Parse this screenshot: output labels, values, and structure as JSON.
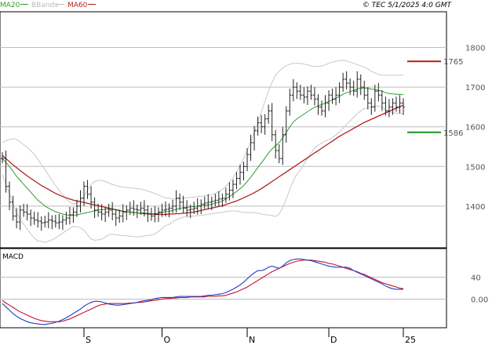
{
  "header": {
    "legend": [
      {
        "label": "MA20",
        "color": "#2e9e2e"
      },
      {
        "label": "BBands",
        "color": "#bbbbbb"
      },
      {
        "label": "MA60",
        "color": "#b21f1f"
      }
    ],
    "timestamp": "© TEC 5/1/2025 4:0 GMT"
  },
  "chart_data": [
    {
      "type": "ohlc",
      "yticks": [
        1400,
        1500,
        1600,
        1700,
        1800
      ],
      "ytick_labels": [
        "1400",
        "1500",
        "1600",
        "1700",
        "1800"
      ],
      "ylim": [
        1295,
        1890
      ],
      "grid": true,
      "x_labels": [
        "S",
        "O",
        "N",
        "D",
        "25"
      ],
      "x_label_index": [
        23,
        45,
        69,
        92,
        113
      ],
      "n_bars": 114,
      "close": [
        1520,
        1450,
        1410,
        1375,
        1360,
        1390,
        1385,
        1380,
        1370,
        1365,
        1362,
        1358,
        1360,
        1365,
        1362,
        1358,
        1360,
        1365,
        1370,
        1378,
        1385,
        1400,
        1420,
        1450,
        1430,
        1410,
        1390,
        1385,
        1380,
        1385,
        1390,
        1380,
        1370,
        1375,
        1385,
        1390,
        1395,
        1392,
        1390,
        1395,
        1390,
        1380,
        1375,
        1380,
        1385,
        1390,
        1392,
        1395,
        1400,
        1420,
        1410,
        1395,
        1390,
        1392,
        1395,
        1400,
        1405,
        1408,
        1410,
        1412,
        1415,
        1418,
        1420,
        1430,
        1440,
        1455,
        1470,
        1485,
        1500,
        1530,
        1560,
        1590,
        1610,
        1600,
        1620,
        1640,
        1580,
        1540,
        1520,
        1580,
        1640,
        1680,
        1700,
        1690,
        1680,
        1675,
        1690,
        1680,
        1670,
        1650,
        1640,
        1660,
        1680,
        1670,
        1680,
        1700,
        1720,
        1710,
        1700,
        1690,
        1720,
        1700,
        1680,
        1660,
        1650,
        1690,
        1680,
        1660,
        1640,
        1650,
        1660,
        1650,
        1660,
        1650
      ],
      "sma20": [
        1520,
        1510,
        1500,
        1488,
        1475,
        1465,
        1455,
        1445,
        1435,
        1425,
        1415,
        1408,
        1400,
        1395,
        1390,
        1386,
        1383,
        1380,
        1378,
        1377,
        1377,
        1378,
        1380,
        1382,
        1384,
        1386,
        1388,
        1390,
        1391,
        1392,
        1393,
        1392,
        1390,
        1388,
        1387,
        1386,
        1385,
        1384,
        1383,
        1383,
        1383,
        1382,
        1381,
        1381,
        1382,
        1384,
        1386,
        1387,
        1389,
        1392,
        1394,
        1396,
        1397,
        1398,
        1399,
        1400,
        1401,
        1402,
        1403,
        1405,
        1407,
        1410,
        1413,
        1418,
        1424,
        1430,
        1437,
        1444,
        1452,
        1462,
        1473,
        1485,
        1497,
        1509,
        1521,
        1534,
        1544,
        1552,
        1560,
        1572,
        1586,
        1600,
        1612,
        1620,
        1626,
        1632,
        1638,
        1644,
        1649,
        1653,
        1656,
        1660,
        1664,
        1668,
        1672,
        1677,
        1682,
        1686,
        1689,
        1692,
        1695,
        1697,
        1698,
        1697,
        1695,
        1694,
        1692,
        1690,
        1686,
        1684,
        1683,
        1682,
        1682,
        1681
      ],
      "sma60": [
        1528,
        1520,
        1512,
        1504,
        1497,
        1490,
        1483,
        1476,
        1470,
        1464,
        1458,
        1452,
        1447,
        1442,
        1437,
        1432,
        1428,
        1424,
        1421,
        1418,
        1415,
        1413,
        1411,
        1409,
        1407,
        1405,
        1403,
        1401,
        1399,
        1397,
        1395,
        1393,
        1391,
        1389,
        1387,
        1386,
        1385,
        1384,
        1383,
        1382,
        1381,
        1380,
        1380,
        1379,
        1379,
        1379,
        1379,
        1380,
        1380,
        1381,
        1381,
        1382,
        1383,
        1384,
        1385,
        1387,
        1389,
        1391,
        1393,
        1395,
        1397,
        1399,
        1401,
        1404,
        1407,
        1410,
        1413,
        1417,
        1421,
        1425,
        1429,
        1434,
        1439,
        1444,
        1450,
        1456,
        1462,
        1468,
        1474,
        1480,
        1486,
        1492,
        1498,
        1504,
        1510,
        1516,
        1522,
        1528,
        1534,
        1540,
        1546,
        1552,
        1558,
        1564,
        1570,
        1576,
        1581,
        1586,
        1591,
        1596,
        1601,
        1606,
        1611,
        1615,
        1619,
        1623,
        1627,
        1631,
        1635,
        1639,
        1643,
        1647,
        1650,
        1655
      ],
      "bb_upper": [
        1560,
        1565,
        1568,
        1570,
        1568,
        1562,
        1555,
        1548,
        1540,
        1530,
        1518,
        1505,
        1492,
        1478,
        1465,
        1452,
        1440,
        1428,
        1418,
        1410,
        1405,
        1408,
        1415,
        1425,
        1440,
        1455,
        1462,
        1465,
        1465,
        1462,
        1458,
        1455,
        1452,
        1450,
        1448,
        1447,
        1446,
        1445,
        1444,
        1443,
        1441,
        1438,
        1435,
        1432,
        1428,
        1424,
        1421,
        1420,
        1418,
        1418,
        1419,
        1420,
        1421,
        1422,
        1423,
        1424,
        1425,
        1426,
        1427,
        1429,
        1432,
        1436,
        1442,
        1450,
        1460,
        1472,
        1486,
        1502,
        1520,
        1540,
        1562,
        1586,
        1612,
        1638,
        1664,
        1690,
        1712,
        1730,
        1740,
        1748,
        1754,
        1758,
        1760,
        1760,
        1760,
        1758,
        1756,
        1754,
        1752,
        1752,
        1753,
        1756,
        1760,
        1763,
        1765,
        1767,
        1768,
        1766,
        1763,
        1760,
        1757,
        1754,
        1750,
        1746,
        1740,
        1736,
        1732,
        1730,
        1730,
        1730,
        1730,
        1730,
        1730,
        1730
      ],
      "bb_lower": [
        1480,
        1455,
        1432,
        1406,
        1382,
        1368,
        1355,
        1342,
        1330,
        1320,
        1312,
        1311,
        1308,
        1312,
        1315,
        1320,
        1326,
        1332,
        1338,
        1344,
        1349,
        1348,
        1345,
        1339,
        1328,
        1317,
        1314,
        1315,
        1317,
        1322,
        1328,
        1329,
        1328,
        1326,
        1326,
        1325,
        1324,
        1323,
        1322,
        1323,
        1325,
        1326,
        1327,
        1330,
        1336,
        1344,
        1351,
        1354,
        1360,
        1366,
        1369,
        1372,
        1373,
        1374,
        1375,
        1376,
        1377,
        1378,
        1379,
        1381,
        1382,
        1384,
        1384,
        1386,
        1388,
        1388,
        1388,
        1386,
        1384,
        1384,
        1384,
        1384,
        1382,
        1380,
        1378,
        1378,
        1376,
        1374,
        1380,
        1396,
        1418,
        1442,
        1464,
        1480,
        1492,
        1506,
        1520,
        1534,
        1546,
        1554,
        1559,
        1564,
        1568,
        1573,
        1579,
        1587,
        1596,
        1606,
        1615,
        1624,
        1633,
        1640,
        1646,
        1648,
        1650,
        1652,
        1652,
        1650,
        1642,
        1638,
        1636,
        1634,
        1634,
        1632
      ]
    },
    {
      "type": "line",
      "title": "MACD",
      "yticks": [
        0,
        40
      ],
      "ytick_labels": [
        "0.00",
        "40"
      ],
      "ylim": [
        -52,
        92
      ],
      "grid": true,
      "macd": [
        -8,
        -14,
        -20,
        -26,
        -31,
        -35,
        -38,
        -41,
        -43,
        -44,
        -45,
        -46,
        -46,
        -45,
        -44,
        -42,
        -40,
        -37,
        -34,
        -30,
        -26,
        -22,
        -18,
        -13,
        -9,
        -6,
        -4,
        -4,
        -5,
        -7,
        -9,
        -10,
        -11,
        -11,
        -10,
        -9,
        -8,
        -7,
        -6,
        -4,
        -3,
        -2,
        -1,
        1,
        2,
        3,
        3,
        3,
        3,
        4,
        5,
        5,
        5,
        5,
        5,
        5,
        5,
        6,
        7,
        7,
        8,
        9,
        10,
        12,
        15,
        18,
        22,
        26,
        31,
        37,
        43,
        48,
        52,
        52,
        54,
        58,
        60,
        58,
        56,
        60,
        66,
        70,
        72,
        73,
        73,
        72,
        71,
        70,
        68,
        66,
        64,
        62,
        60,
        59,
        58,
        58,
        58,
        58,
        56,
        52,
        49,
        46,
        43,
        40,
        37,
        34,
        31,
        28,
        24,
        21,
        19,
        18,
        18,
        18
      ],
      "signal": [
        -2,
        -7,
        -11,
        -15,
        -19,
        -23,
        -26,
        -29,
        -32,
        -35,
        -37,
        -39,
        -40,
        -41,
        -41,
        -41,
        -41,
        -40,
        -38,
        -36,
        -33,
        -30,
        -27,
        -24,
        -21,
        -18,
        -15,
        -12,
        -10,
        -9,
        -8,
        -8,
        -8,
        -8,
        -8,
        -8,
        -7,
        -7,
        -6,
        -6,
        -5,
        -4,
        -3,
        -2,
        -1,
        0,
        1,
        1,
        2,
        2,
        3,
        3,
        3,
        4,
        4,
        4,
        4,
        4,
        5,
        5,
        5,
        6,
        6,
        7,
        9,
        11,
        13,
        16,
        19,
        22,
        26,
        30,
        34,
        38,
        42,
        46,
        50,
        53,
        56,
        59,
        62,
        65,
        67,
        69,
        70,
        71,
        71,
        71,
        70,
        69,
        68,
        67,
        65,
        64,
        62,
        60,
        58,
        56,
        54,
        52,
        50,
        47,
        45,
        42,
        39,
        36,
        33,
        30,
        28,
        26,
        24,
        22,
        20,
        19
      ]
    }
  ],
  "price_labels": [
    {
      "value": 1765,
      "text": "1765",
      "color": "#b21f1f"
    },
    {
      "value": 1586,
      "text": "1586",
      "color": "#1f8f1f"
    }
  ],
  "colors": {
    "ohlc": "#222222",
    "ma20": "#2e9e2e",
    "ma60": "#b21f1f",
    "bbands": "#c8c8c8",
    "macd": "#1f3fbf",
    "signal": "#c8102e",
    "grid": "#bcbcbc",
    "border": "#000000"
  }
}
